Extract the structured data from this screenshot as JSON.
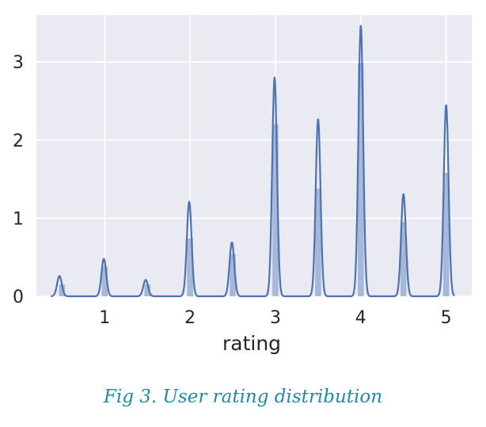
{
  "chart_data": {
    "type": "bar",
    "title": "",
    "xlabel": "rating",
    "ylabel": "",
    "xlim": [
      0.2,
      5.3
    ],
    "ylim": [
      0,
      3.6
    ],
    "grid": true,
    "x_ticks": [
      1,
      2,
      3,
      4,
      5
    ],
    "y_ticks": [
      0,
      1,
      2,
      3
    ],
    "colors": {
      "background": "#eaeaf2",
      "grid": "#ffffff",
      "line": "#4c72b0",
      "bars": "#9aaed3"
    },
    "series": [
      {
        "type": "histogram",
        "bars": [
          {
            "x": 0.5,
            "value": 0.15
          },
          {
            "x": 1.0,
            "value": 0.38
          },
          {
            "x": 1.5,
            "value": 0.15
          },
          {
            "x": 2.0,
            "value": 0.74
          },
          {
            "x": 2.5,
            "value": 0.54
          },
          {
            "x": 3.0,
            "value": 2.2
          },
          {
            "x": 3.5,
            "value": 1.38
          },
          {
            "x": 4.0,
            "value": 2.98
          },
          {
            "x": 4.5,
            "value": 0.95
          },
          {
            "x": 5.0,
            "value": 1.58
          }
        ]
      },
      {
        "type": "kde",
        "peaks": [
          {
            "x": 0.47,
            "value": 0.26
          },
          {
            "x": 0.99,
            "value": 0.48
          },
          {
            "x": 1.48,
            "value": 0.21
          },
          {
            "x": 1.99,
            "value": 1.21
          },
          {
            "x": 2.49,
            "value": 0.69
          },
          {
            "x": 2.99,
            "value": 2.8
          },
          {
            "x": 3.5,
            "value": 2.27
          },
          {
            "x": 4.0,
            "value": 3.47
          },
          {
            "x": 4.5,
            "value": 1.31
          },
          {
            "x": 5.0,
            "value": 2.45
          }
        ]
      }
    ]
  },
  "caption": "Fig 3. User rating distribution"
}
